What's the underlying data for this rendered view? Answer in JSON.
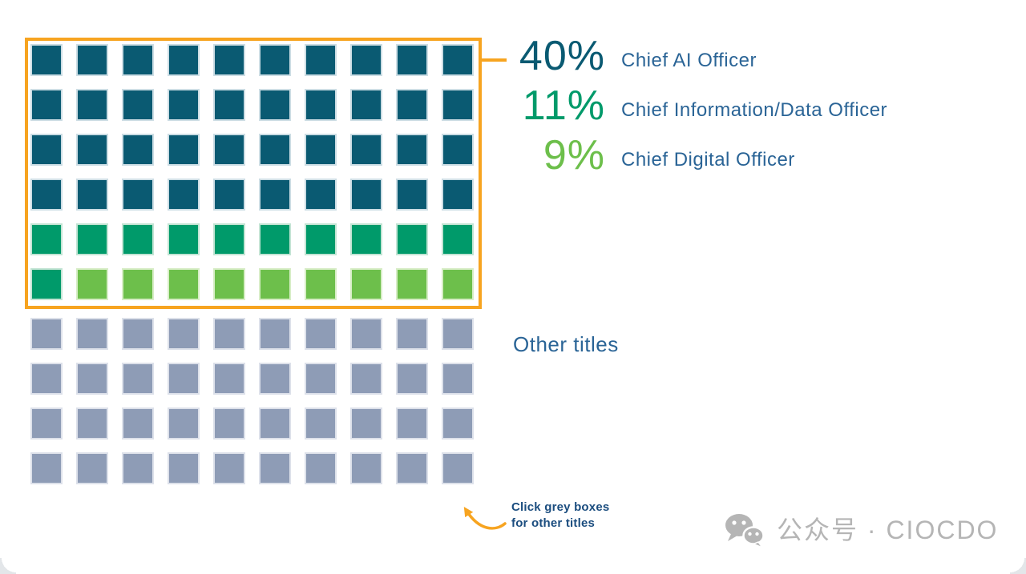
{
  "chart_data": {
    "type": "waffle",
    "title": "",
    "grid": {
      "rows": 10,
      "columns": 10,
      "cell_unit_percent": 1
    },
    "series": [
      {
        "name": "Chief AI Officer",
        "value": 40,
        "unit": "%",
        "color": "#0a5a72",
        "border_tint": "#ccdde4"
      },
      {
        "name": "Chief Information/Data Officer",
        "value": 11,
        "unit": "%",
        "color": "#009a6a",
        "border_tint": "#c3e4d4"
      },
      {
        "name": "Chief Digital Officer",
        "value": 9,
        "unit": "%",
        "color": "#6dbf4b",
        "border_tint": "#d7edc6"
      },
      {
        "name": "Other titles",
        "value": 40,
        "unit": "%",
        "color": "#8e9cb6",
        "border_tint": "#dde1ea"
      }
    ],
    "highlight": {
      "color": "#f7a420",
      "covers_series": [
        "Chief AI Officer",
        "Chief Information/Data Officer",
        "Chief Digital Officer"
      ],
      "covers_percent": 60
    },
    "legend_position": "right",
    "annotation": "Click grey boxes for other titles"
  },
  "legend": {
    "items": [
      {
        "percent": "40%",
        "label": "Chief AI Officer",
        "color": "#0a5a72"
      },
      {
        "percent": "11%",
        "label": "Chief Information/Data Officer",
        "color": "#009a6a"
      },
      {
        "percent": "9%",
        "label": "Chief Digital Officer",
        "color": "#6dbf4b"
      }
    ],
    "label_color": "#2a6496"
  },
  "other_titles": {
    "label": "Other titles"
  },
  "annotation": {
    "line1": "Click grey boxes",
    "line2": "for other titles"
  },
  "watermark": {
    "text": "公众号 · CIOCDO",
    "color": "#b5b5b5"
  },
  "colors": {
    "highlight_orange": "#f7a420",
    "label_blue": "#2a6496",
    "annotation_blue": "#1b4d7f",
    "background": "#ffffff"
  }
}
